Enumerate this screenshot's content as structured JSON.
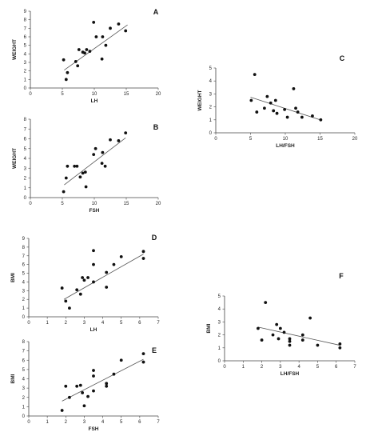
{
  "chart_data": [
    {
      "panel": "A",
      "type": "scatter",
      "xlabel": "LH",
      "ylabel": "WEIGHT",
      "xlim": [
        0,
        20
      ],
      "ylim": [
        0,
        9
      ],
      "xticks": [
        0,
        5,
        10,
        15,
        20
      ],
      "yticks": [
        0,
        1,
        2,
        3,
        4,
        5,
        6,
        7,
        8,
        9
      ],
      "points": [
        [
          5.2,
          3.3
        ],
        [
          5.6,
          1.0
        ],
        [
          5.8,
          1.8
        ],
        [
          7.1,
          3.1
        ],
        [
          7.4,
          2.6
        ],
        [
          7.6,
          4.5
        ],
        [
          8.2,
          4.2
        ],
        [
          8.5,
          4.1
        ],
        [
          8.8,
          4.5
        ],
        [
          9.3,
          4.3
        ],
        [
          9.9,
          7.7
        ],
        [
          10.3,
          6.0
        ],
        [
          11.2,
          3.4
        ],
        [
          11.3,
          6.0
        ],
        [
          11.8,
          5.0
        ],
        [
          12.5,
          7.0
        ],
        [
          13.8,
          7.5
        ],
        [
          14.9,
          6.7
        ]
      ],
      "trend": [
        [
          5.3,
          2.1
        ],
        [
          15.2,
          7.4
        ]
      ]
    },
    {
      "panel": "B",
      "type": "scatter",
      "xlabel": "FSH",
      "ylabel": "WEIGHT",
      "xlim": [
        0,
        20
      ],
      "ylim": [
        0,
        8
      ],
      "xticks": [
        0,
        5,
        10,
        15,
        20
      ],
      "yticks": [
        0,
        1,
        2,
        3,
        4,
        5,
        6,
        7,
        8
      ],
      "points": [
        [
          5.2,
          0.6
        ],
        [
          5.6,
          2.0
        ],
        [
          5.8,
          3.2
        ],
        [
          6.9,
          3.2
        ],
        [
          7.3,
          3.2
        ],
        [
          7.8,
          2.1
        ],
        [
          8.2,
          2.5
        ],
        [
          8.6,
          2.6
        ],
        [
          8.7,
          1.1
        ],
        [
          9.9,
          4.4
        ],
        [
          10.2,
          5.0
        ],
        [
          11.2,
          3.5
        ],
        [
          11.3,
          4.6
        ],
        [
          11.7,
          3.2
        ],
        [
          12.5,
          5.9
        ],
        [
          13.8,
          5.8
        ],
        [
          14.9,
          6.6
        ]
      ],
      "trend": [
        [
          5.3,
          1.3
        ],
        [
          14.9,
          6.1
        ]
      ]
    },
    {
      "panel": "C",
      "type": "scatter",
      "xlabel": "LH/FSH",
      "ylabel": "WEIGHT",
      "xlim": [
        0,
        20
      ],
      "ylim": [
        0,
        5
      ],
      "xticks": [
        0,
        5,
        10,
        15,
        20
      ],
      "yticks": [
        0,
        1,
        2,
        3,
        4,
        5
      ],
      "points": [
        [
          5.1,
          2.5
        ],
        [
          5.6,
          4.5
        ],
        [
          5.9,
          1.6
        ],
        [
          7.0,
          1.9
        ],
        [
          7.4,
          2.8
        ],
        [
          7.9,
          2.3
        ],
        [
          8.3,
          1.7
        ],
        [
          8.6,
          2.5
        ],
        [
          8.8,
          1.5
        ],
        [
          9.9,
          1.8
        ],
        [
          10.3,
          1.2
        ],
        [
          11.2,
          3.4
        ],
        [
          11.5,
          1.9
        ],
        [
          11.8,
          1.6
        ],
        [
          12.4,
          1.2
        ],
        [
          13.9,
          1.3
        ],
        [
          15.1,
          1.0
        ]
      ],
      "trend": [
        [
          5.0,
          2.75
        ],
        [
          15.0,
          1.0
        ]
      ]
    },
    {
      "panel": "D",
      "type": "scatter",
      "xlabel": "LH",
      "ylabel": "BMI",
      "xlim": [
        0,
        7
      ],
      "ylim": [
        0,
        9
      ],
      "xticks": [
        0,
        1,
        2,
        3,
        4,
        5,
        6,
        7
      ],
      "yticks": [
        0,
        1,
        2,
        3,
        4,
        5,
        6,
        7,
        8,
        9
      ],
      "points": [
        [
          1.8,
          3.3
        ],
        [
          2.0,
          1.8
        ],
        [
          2.2,
          1.0
        ],
        [
          2.6,
          3.1
        ],
        [
          2.8,
          2.6
        ],
        [
          2.9,
          4.5
        ],
        [
          3.0,
          4.2
        ],
        [
          3.2,
          4.5
        ],
        [
          3.5,
          7.6
        ],
        [
          3.5,
          6.0
        ],
        [
          3.5,
          4.0
        ],
        [
          4.2,
          3.4
        ],
        [
          4.2,
          5.1
        ],
        [
          4.6,
          6.0
        ],
        [
          5.0,
          6.9
        ],
        [
          6.2,
          7.5
        ],
        [
          6.2,
          6.7
        ]
      ],
      "trend": [
        [
          1.9,
          2.0
        ],
        [
          6.2,
          7.2
        ]
      ]
    },
    {
      "panel": "E",
      "type": "scatter",
      "xlabel": "FSH",
      "ylabel": "BMI",
      "xlim": [
        0,
        7
      ],
      "ylim": [
        0,
        8
      ],
      "xticks": [
        0,
        1,
        2,
        3,
        4,
        5,
        6,
        7
      ],
      "yticks": [
        0,
        1,
        2,
        3,
        4,
        5,
        6,
        7,
        8
      ],
      "points": [
        [
          1.8,
          0.6
        ],
        [
          2.0,
          3.2
        ],
        [
          2.2,
          2.0
        ],
        [
          2.6,
          3.2
        ],
        [
          2.8,
          3.3
        ],
        [
          2.9,
          2.5
        ],
        [
          3.0,
          1.1
        ],
        [
          3.2,
          2.1
        ],
        [
          3.5,
          4.9
        ],
        [
          3.5,
          4.3
        ],
        [
          3.5,
          2.7
        ],
        [
          4.2,
          3.5
        ],
        [
          4.2,
          3.2
        ],
        [
          4.6,
          4.5
        ],
        [
          5.0,
          6.0
        ],
        [
          6.2,
          6.7
        ],
        [
          6.2,
          5.8
        ]
      ],
      "trend": [
        [
          1.8,
          1.6
        ],
        [
          6.2,
          6.1
        ]
      ]
    },
    {
      "panel": "F",
      "type": "scatter",
      "xlabel": "LH/FSH",
      "ylabel": "BMI",
      "xlim": [
        0,
        7
      ],
      "ylim": [
        0,
        5
      ],
      "xticks": [
        0,
        1,
        2,
        3,
        4,
        5,
        6,
        7
      ],
      "yticks": [
        0,
        1,
        2,
        3,
        4,
        5
      ],
      "points": [
        [
          1.8,
          2.5
        ],
        [
          2.0,
          1.6
        ],
        [
          2.2,
          4.5
        ],
        [
          2.6,
          2.0
        ],
        [
          2.8,
          2.8
        ],
        [
          2.9,
          1.7
        ],
        [
          3.0,
          2.5
        ],
        [
          3.2,
          2.2
        ],
        [
          3.5,
          1.7
        ],
        [
          3.5,
          1.5
        ],
        [
          3.5,
          1.2
        ],
        [
          4.2,
          2.0
        ],
        [
          4.2,
          1.6
        ],
        [
          4.6,
          3.3
        ],
        [
          5.0,
          1.2
        ],
        [
          6.2,
          1.3
        ],
        [
          6.2,
          1.0
        ]
      ],
      "trend": [
        [
          1.8,
          2.6
        ],
        [
          6.2,
          1.2
        ]
      ]
    }
  ]
}
